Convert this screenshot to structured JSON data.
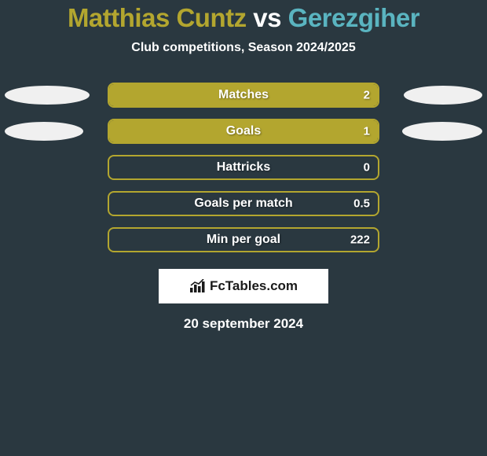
{
  "title": {
    "parts": [
      {
        "text": "Matthias Cuntz",
        "color": "#b3a62f"
      },
      {
        "text": " vs ",
        "color": "#ffffff"
      },
      {
        "text": "Gerezgiher",
        "color": "#5ab4c0"
      }
    ],
    "fontsize": 33
  },
  "subtitle": "Club competitions, Season 2024/2025",
  "bar_colors": {
    "border": "#b3a62f",
    "fill": "#b3a62f",
    "background": "#2a3840"
  },
  "ellipse_color": "#f0f0f0",
  "rows": [
    {
      "label": "Matches",
      "value": "2",
      "fill_pct": 100,
      "left_ellipse_width": 108,
      "right_ellipse_width": 100,
      "show_left_ellipse": true,
      "show_right_ellipse": true
    },
    {
      "label": "Goals",
      "value": "1",
      "fill_pct": 100,
      "left_ellipse_width": 100,
      "right_ellipse_width": 102,
      "show_left_ellipse": true,
      "show_right_ellipse": true
    },
    {
      "label": "Hattricks",
      "value": "0",
      "fill_pct": 0,
      "show_left_ellipse": false,
      "show_right_ellipse": false
    },
    {
      "label": "Goals per match",
      "value": "0.5",
      "fill_pct": 0,
      "show_left_ellipse": false,
      "show_right_ellipse": false
    },
    {
      "label": "Min per goal",
      "value": "222",
      "fill_pct": 0,
      "show_left_ellipse": false,
      "show_right_ellipse": false
    }
  ],
  "brand": {
    "text": "FcTables.com",
    "icon": "bar-chart-icon"
  },
  "date": "20 september 2024"
}
